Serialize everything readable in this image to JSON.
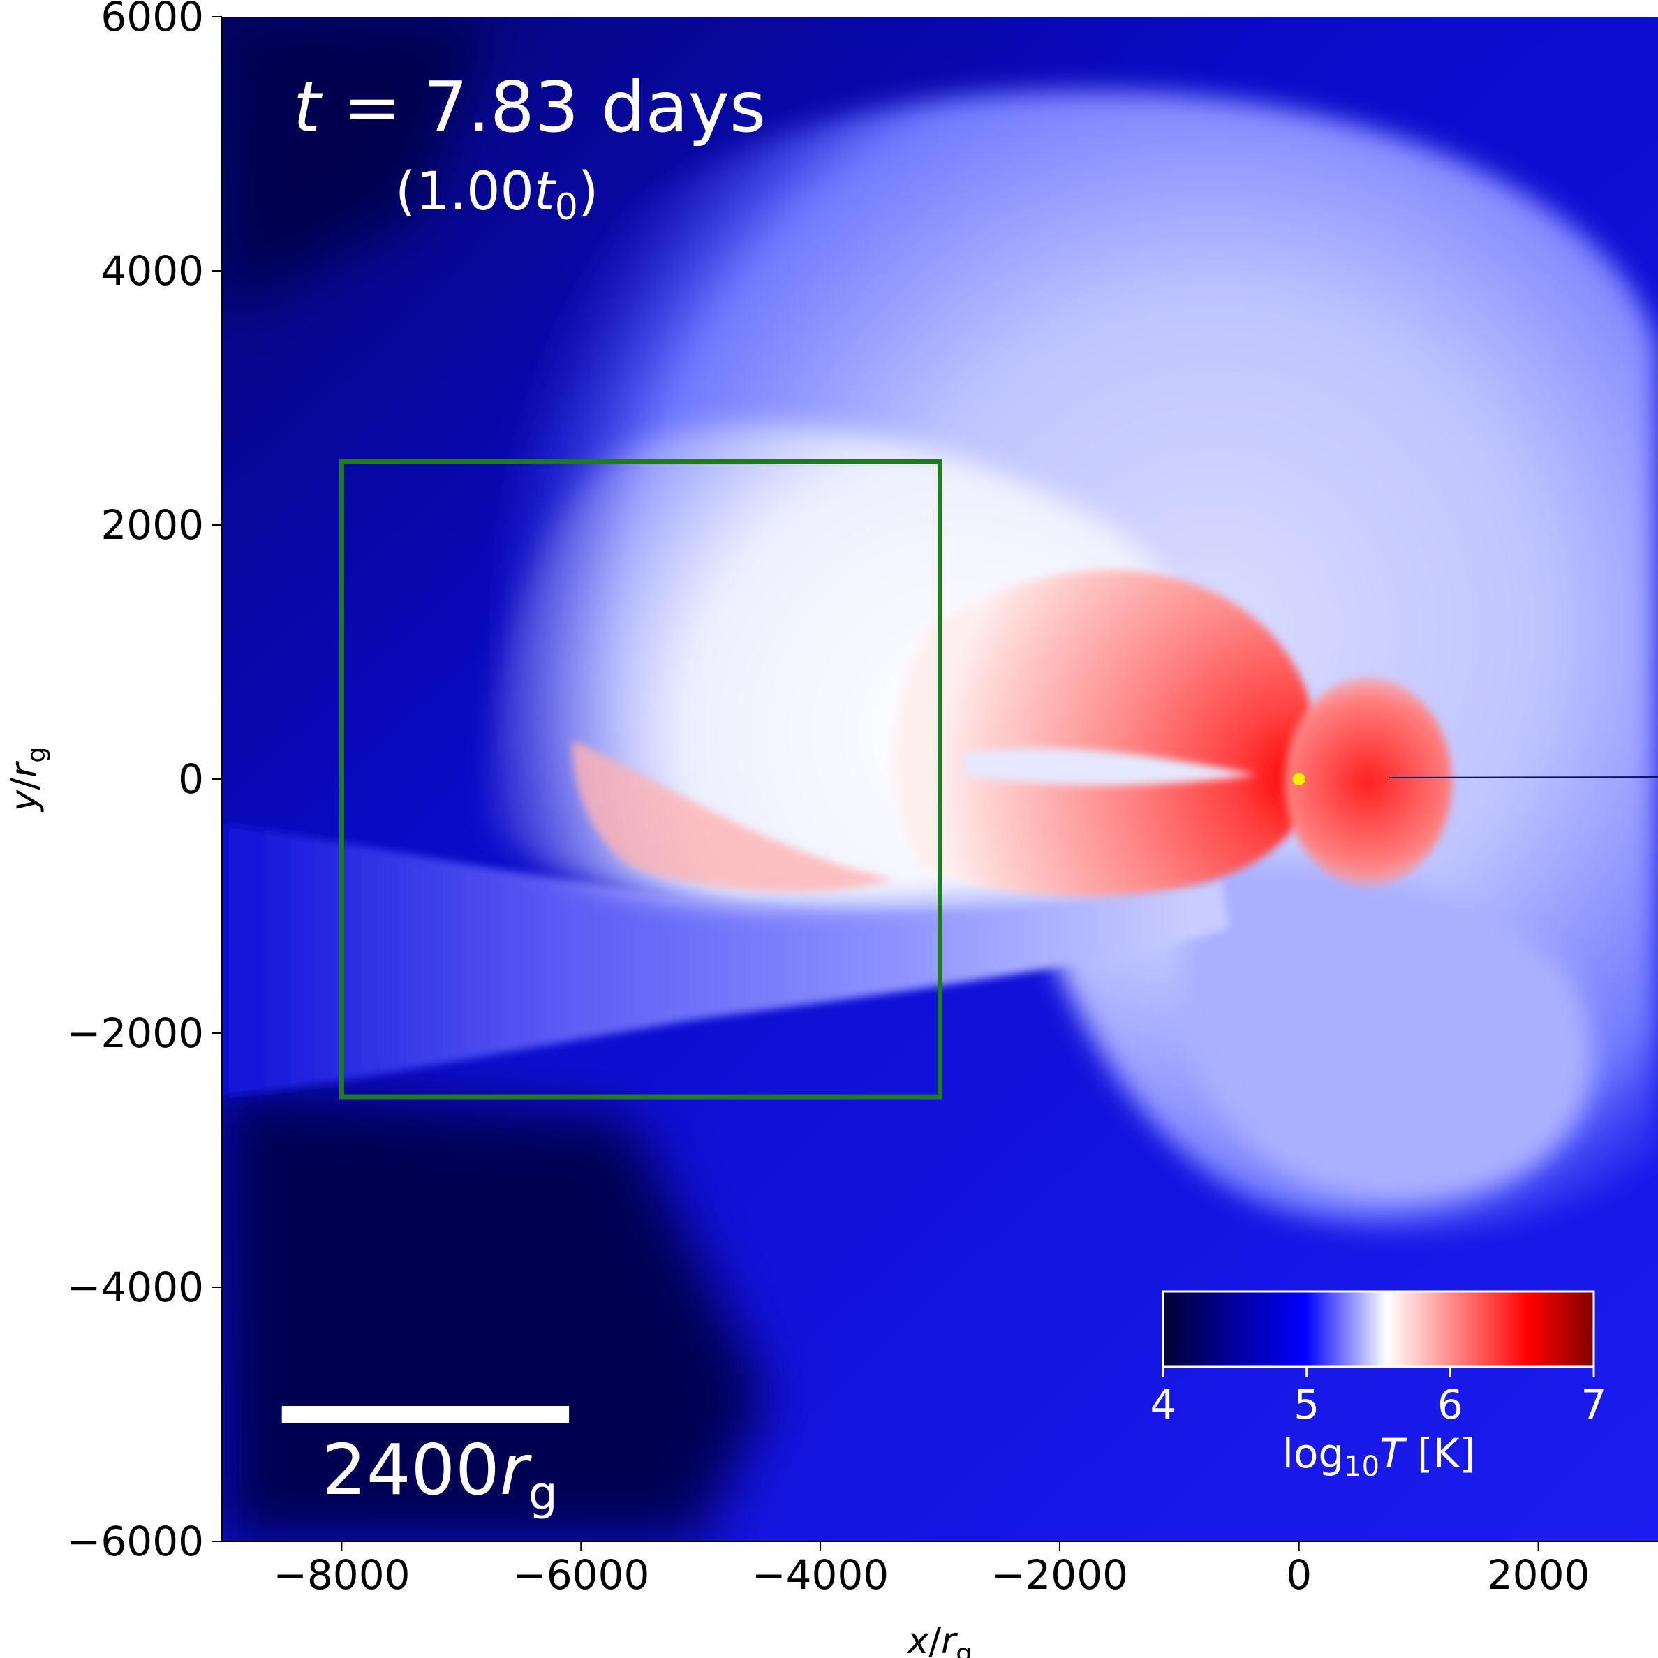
{
  "chart_data": {
    "type": "heatmap",
    "title": "",
    "xlabel_var": "x",
    "xlabel_sub": "g",
    "ylabel_var": "y",
    "ylabel_sub": "g",
    "xlim": [
      -9000,
      3000
    ],
    "ylim": [
      -6000,
      6000
    ],
    "x_ticks": [
      -8000,
      -6000,
      -4000,
      -2000,
      0,
      2000
    ],
    "x_tick_labels": [
      "−8000",
      "−6000",
      "−4000",
      "−2000",
      "0",
      "2000"
    ],
    "y_ticks": [
      -6000,
      -4000,
      -2000,
      0,
      2000,
      4000,
      6000
    ],
    "y_tick_labels": [
      "−6000",
      "−4000",
      "−2000",
      "0",
      "2000",
      "4000",
      "6000"
    ],
    "grid": false,
    "time_annotation": {
      "t_var": "t",
      "t_value": " = 7.83 days",
      "t0_open": "(1.00",
      "t0_var": "t",
      "t0_sub": "0",
      "t0_close": ")"
    },
    "scale_bar": {
      "label_number": "2400",
      "label_var": "r",
      "label_sub": "g",
      "length": 2400,
      "x_start": -8500,
      "y": -5000
    },
    "inset_box": {
      "x": [
        -8000,
        -3000
      ],
      "y": [
        -2500,
        2500
      ],
      "color": "#1e7b1e"
    },
    "marker": {
      "x": 0,
      "y": 0,
      "color": "#ffee00"
    },
    "colorbar": {
      "min": 4,
      "max": 7,
      "ticks": [
        4,
        5,
        6,
        7
      ],
      "tick_labels": [
        "4",
        "5",
        "6",
        "7"
      ],
      "label_prefix": "log",
      "label_sub": "10",
      "label_var": "T",
      "label_unit": " [K]",
      "colormap": [
        "#000033",
        "#0000ff",
        "#ffffff",
        "#ff0000",
        "#800000"
      ],
      "colormap_stops": [
        0,
        0.33,
        0.52,
        0.85,
        1.0
      ]
    }
  }
}
